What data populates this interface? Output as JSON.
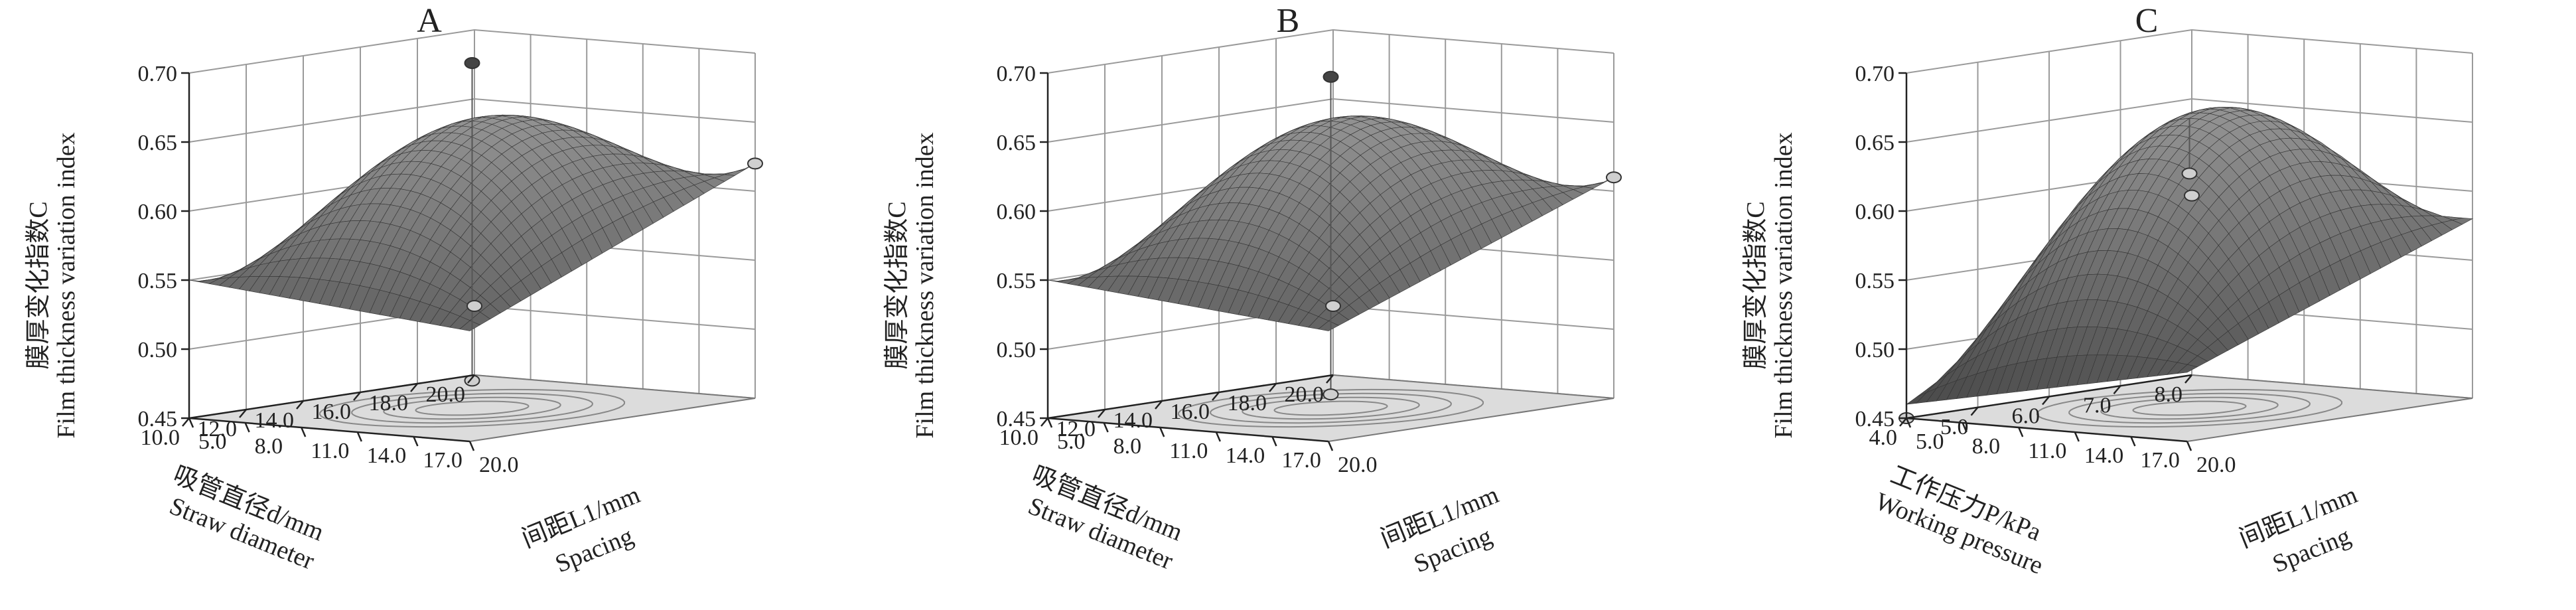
{
  "chart_data": [
    {
      "type": "surface",
      "title": "A",
      "zlabel": "膜厚变化指数C",
      "zlabel_en": "Film thickness variation index",
      "x_label": "间距L1/mm",
      "x_label_en": "Spacing",
      "y_label": "吸管直径d/mm",
      "y_label_en": "Straw diameter",
      "x_ticks": [
        "5.0",
        "8.0",
        "11.0",
        "14.0",
        "17.0",
        "20.0"
      ],
      "y_ticks": [
        "10.0",
        "12.0",
        "14.0",
        "16.0",
        "18.0",
        "20.0"
      ],
      "z_ticks": [
        "0.45",
        "0.50",
        "0.55",
        "0.60",
        "0.65",
        "0.70"
      ],
      "xlim": [
        5,
        20
      ],
      "ylim": [
        10,
        20
      ],
      "zlim": [
        0.45,
        0.7
      ],
      "surface_model": {
        "center_x": 12.5,
        "center_y": 15.0,
        "z_max": 0.66,
        "corners": {
          "x5_y10": 0.55,
          "x20_y10": 0.53,
          "x5_y20": 0.5,
          "x20_y20": 0.62
        }
      },
      "design_points": [
        {
          "x": 12.5,
          "y": 15.0,
          "z": 0.7
        },
        {
          "x": 12.5,
          "y": 15.0,
          "z": 0.47
        },
        {
          "x": 20.0,
          "y": 20.0,
          "z": 0.62
        },
        {
          "x": 5.0,
          "y": 20.0,
          "z": 0.5
        }
      ],
      "contour_levels": [
        0.5,
        0.55,
        0.6,
        0.65
      ]
    },
    {
      "type": "surface",
      "title": "B",
      "zlabel": "膜厚变化指数C",
      "zlabel_en": "Film thickness variation index",
      "x_label": "间距L1/mm",
      "x_label_en": "Spacing",
      "y_label": "吸管直径d/mm",
      "y_label_en": "Straw diameter",
      "x_ticks": [
        "5.0",
        "8.0",
        "11.0",
        "14.0",
        "17.0",
        "20.0"
      ],
      "y_ticks": [
        "10.0",
        "12.0",
        "14.0",
        "16.0",
        "18.0",
        "20.0"
      ],
      "z_ticks": [
        "0.45",
        "0.50",
        "0.55",
        "0.60",
        "0.65",
        "0.70"
      ],
      "xlim": [
        5,
        20
      ],
      "ylim": [
        10,
        20
      ],
      "zlim": [
        0.45,
        0.7
      ],
      "surface_model": {
        "center_x": 12.5,
        "center_y": 15.0,
        "z_max": 0.66,
        "corners": {
          "x5_y10": 0.55,
          "x20_y10": 0.53,
          "x5_y20": 0.5,
          "x20_y20": 0.61
        }
      },
      "design_points": [
        {
          "x": 12.5,
          "y": 15.0,
          "z": 0.69
        },
        {
          "x": 12.5,
          "y": 15.0,
          "z": 0.46
        },
        {
          "x": 20.0,
          "y": 20.0,
          "z": 0.61
        },
        {
          "x": 5.0,
          "y": 20.0,
          "z": 0.5
        }
      ],
      "contour_levels": [
        0.5,
        0.55,
        0.6,
        0.65
      ]
    },
    {
      "type": "surface",
      "title": "C",
      "zlabel": "膜厚变化指数C",
      "zlabel_en": "Film thickness variation index",
      "x_label": "间距L1/mm",
      "x_label_en": "Spacing",
      "y_label": "工作压力P/kPa",
      "y_label_en": "Working pressure",
      "x_ticks": [
        "5.0",
        "8.0",
        "11.0",
        "14.0",
        "17.0",
        "20.0"
      ],
      "y_ticks": [
        "4.0",
        "5.0",
        "6.0",
        "7.0",
        "8.0"
      ],
      "z_ticks": [
        "0.45",
        "0.50",
        "0.55",
        "0.60",
        "0.65",
        "0.70"
      ],
      "xlim": [
        5,
        20
      ],
      "ylim": [
        4,
        8
      ],
      "zlim": [
        0.45,
        0.7
      ],
      "surface_model": {
        "center_x": 12.5,
        "center_y": 6.0,
        "z_max": 0.66,
        "corners": {
          "x5_y4": 0.46,
          "x20_y4": 0.5,
          "x5_y8": 0.58,
          "x20_y8": 0.58
        }
      },
      "design_points": [
        {
          "x": 5.0,
          "y": 8.0,
          "z": 0.58
        },
        {
          "x": 12.5,
          "y": 6.0,
          "z": 0.62
        },
        {
          "x": 5.0,
          "y": 4.0,
          "z": 0.45
        }
      ],
      "contour_levels": [
        0.5,
        0.55,
        0.6,
        0.65
      ]
    }
  ]
}
